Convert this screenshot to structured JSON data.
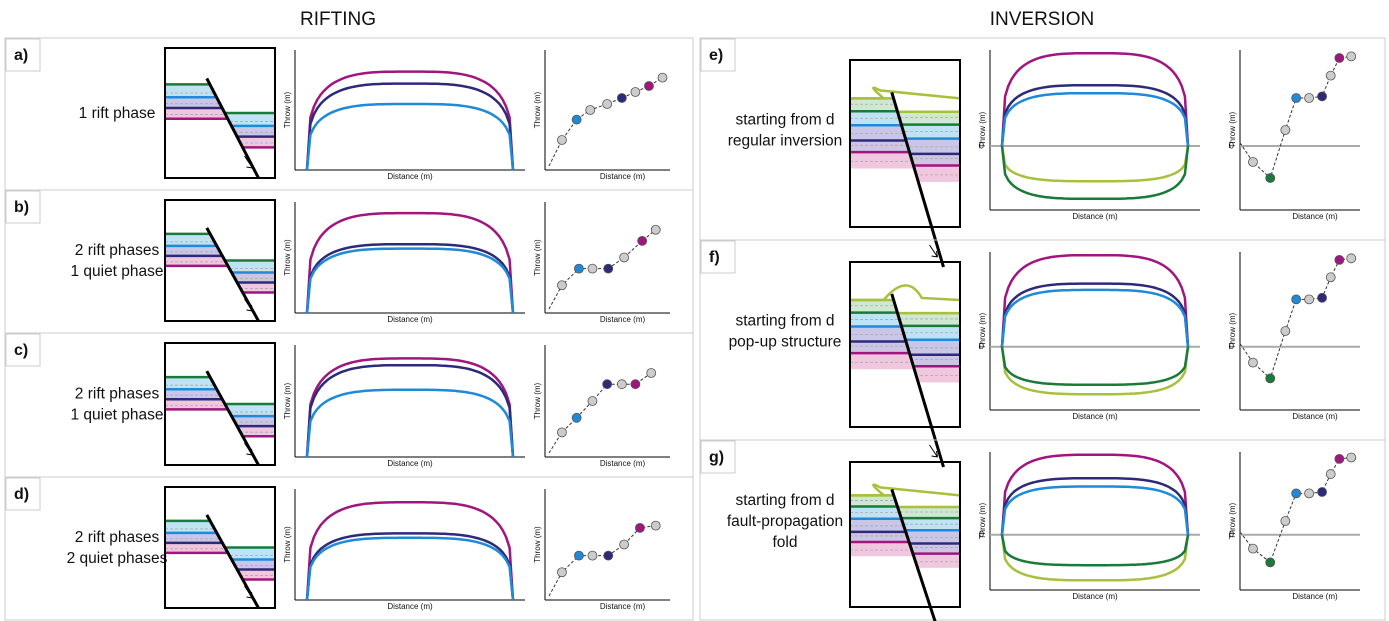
{
  "headers": {
    "rifting": "RIFTING",
    "inversion": "INVERSION"
  },
  "axis_labels": {
    "throw": "Throw (m)",
    "distance": "Distance (m)",
    "zero": "0"
  },
  "panels": [
    {
      "label": "a)",
      "text": [
        "1 rift phase"
      ]
    },
    {
      "label": "b)",
      "text": [
        "2 rift phases",
        "1 quiet phase"
      ]
    },
    {
      "label": "c)",
      "text": [
        "2 rift phases",
        "1 quiet phase"
      ]
    },
    {
      "label": "d)",
      "text": [
        "2 rift phases",
        "2 quiet phases"
      ]
    },
    {
      "label": "e)",
      "text": [
        "starting from d",
        "regular inversion"
      ]
    },
    {
      "label": "f)",
      "text": [
        "starting from d",
        "pop-up structure"
      ]
    },
    {
      "label": "g)",
      "text": [
        "starting from d",
        "fault-propagation",
        "fold"
      ]
    }
  ]
}
